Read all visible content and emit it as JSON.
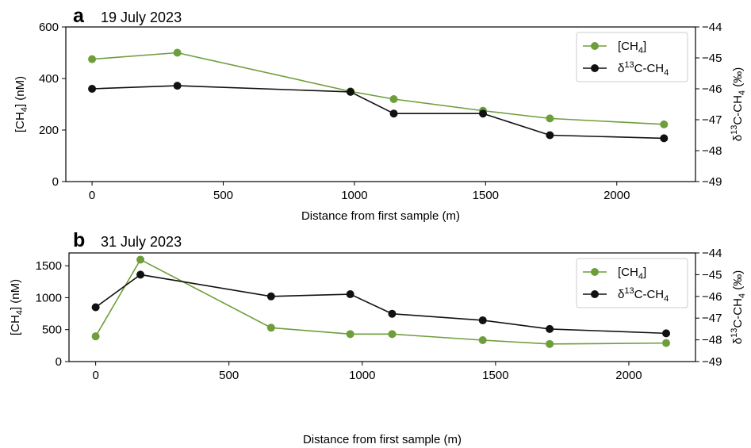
{
  "colors": {
    "green": "#6e9e3b",
    "black": "#111111",
    "axis": "#000000"
  },
  "chart_data": [
    {
      "panel_id": "a",
      "type": "line",
      "panel_label": "a",
      "title": "19 July 2023",
      "xlabel": "Distance from first sample (m)",
      "ylabel_left": "[CH4] (nM)",
      "ylabel_right": "δ13C-CH4 (‰)",
      "xlim": [
        -100,
        2300
      ],
      "ylim_left": [
        0,
        600
      ],
      "ylim_right": [
        -49,
        -44
      ],
      "xticks": [
        0,
        500,
        1000,
        1500,
        2000
      ],
      "yticks_left": [
        0,
        200,
        400,
        600
      ],
      "yticks_right": [
        -49,
        -48,
        -47,
        -46,
        -45,
        -44
      ],
      "legend_position": "top-right",
      "series": [
        {
          "name": "[CH4]",
          "axis": "left",
          "color": "#6e9e3b",
          "x": [
            0,
            325,
            985,
            1150,
            1490,
            1745,
            2180
          ],
          "y": [
            475,
            500,
            350,
            320,
            275,
            245,
            222
          ]
        },
        {
          "name": "δ13C-CH4",
          "axis": "right",
          "color": "#111111",
          "x": [
            0,
            325,
            985,
            1150,
            1490,
            1745,
            2180
          ],
          "y": [
            -46.0,
            -45.9,
            -46.1,
            -46.8,
            -46.8,
            -47.5,
            -47.6
          ]
        }
      ]
    },
    {
      "panel_id": "b",
      "type": "line",
      "panel_label": "b",
      "title": "31 July 2023",
      "xlabel": "Distance from first sample (m)",
      "ylabel_left": "[CH4] (nM)",
      "ylabel_right": "δ13C-CH4 (‰)",
      "xlim": [
        -100,
        2250
      ],
      "ylim_left": [
        0,
        1700
      ],
      "ylim_right": [
        -49,
        -44
      ],
      "xticks": [
        0,
        500,
        1000,
        1500,
        2000
      ],
      "yticks_left": [
        0,
        500,
        1000,
        1500
      ],
      "yticks_right": [
        -49,
        -48,
        -47,
        -46,
        -45,
        -44
      ],
      "legend_position": "top-right",
      "series": [
        {
          "name": "[CH4]",
          "axis": "left",
          "color": "#6e9e3b",
          "x": [
            0,
            168,
            658,
            955,
            1112,
            1452,
            1703,
            2140
          ],
          "y": [
            395,
            1595,
            530,
            430,
            430,
            335,
            275,
            290
          ]
        },
        {
          "name": "δ13C-CH4",
          "axis": "right",
          "color": "#111111",
          "x": [
            0,
            168,
            658,
            955,
            1112,
            1452,
            1703,
            2140
          ],
          "y": [
            -46.5,
            -45.0,
            -46.0,
            -45.9,
            -46.8,
            -47.1,
            -47.5,
            -47.7
          ]
        }
      ]
    }
  ]
}
